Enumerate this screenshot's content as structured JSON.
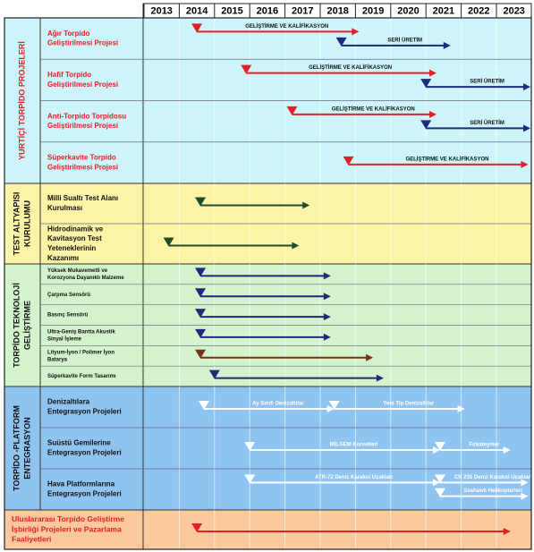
{
  "years": [
    2013,
    2014,
    2015,
    2016,
    2017,
    2018,
    2019,
    2020,
    2021,
    2022,
    2023
  ],
  "groups": [
    {
      "title": [
        "YURTİÇİ TORPİDO PROJELERİ"
      ],
      "fill": "#ccf4f9",
      "label_color": "#e3202a",
      "rows": [
        {
          "label": [
            "Ağır Torpido",
            "Geliştirilmesi Projesi"
          ],
          "bars": [
            {
              "start": 2014.5,
              "end": 2019.1,
              "color": "#e3202a",
              "label": "GELİŞTİRME VE KALİFİKASYON"
            },
            {
              "start": 2018.6,
              "end": 2021.7,
              "color": "#1f2a7a",
              "label": "SERİ ÜRETİM"
            }
          ]
        },
        {
          "label": [
            "Hafif Torpido",
            "Geliştirilmesi  Projesi"
          ],
          "bars": [
            {
              "start": 2015.9,
              "end": 2021.3,
              "color": "#e3202a",
              "label": "GELİŞTİRME VE KALİFİKASYON"
            },
            {
              "start": 2021.0,
              "end": 2024.0,
              "color": "#1f2a7a",
              "label": "SERİ ÜRETİM"
            }
          ]
        },
        {
          "label": [
            "Anti-Torpido Torpidosu",
            "Geliştirilmesi Projesi"
          ],
          "bars": [
            {
              "start": 2017.2,
              "end": 2021.3,
              "color": "#e3202a",
              "label": "GELİŞTİRME VE KALİFİKASYON"
            },
            {
              "start": 2021.0,
              "end": 2024.0,
              "color": "#1f2a7a",
              "label": "SERİ ÜRETİM"
            }
          ]
        },
        {
          "label": [
            "Süperkavite Torpido",
            "Geliştirilmesi Projesi"
          ],
          "bars": [
            {
              "start": 2018.8,
              "end": 2023.9,
              "color": "#e3202a",
              "label": "GELİŞTİRME VE KALİFİKASYON"
            }
          ]
        }
      ]
    },
    {
      "title": [
        "TEST ALTYAPISI",
        "KURULUMU"
      ],
      "fill": "#fbf3a6",
      "label_color": "#111111",
      "rows": [
        {
          "label": [
            "Milli Sualtı Test Alanı",
            "Kurulması"
          ],
          "bars": [
            {
              "start": 2014.6,
              "end": 2017.7,
              "color": "#1d4d2a"
            }
          ]
        },
        {
          "label": [
            "Hidrodinamik ve",
            "Kavitasyon Test",
            "Yeteneklerinin",
            "Kazanımı"
          ],
          "bars": [
            {
              "start": 2013.7,
              "end": 2017.4,
              "color": "#1d4d2a"
            }
          ]
        }
      ]
    },
    {
      "title": [
        "TORPİDO TEKNOLOJİ",
        "GELİŞTİRME"
      ],
      "fill": "#d2f3cc",
      "label_color": "#111111",
      "rows": [
        {
          "label": [
            "Yüksek Mukavemetli ve",
            "Korozyona Dayanıklı Malzeme"
          ],
          "bars": [
            {
              "start": 2014.6,
              "end": 2018.3,
              "color": "#1f2a7a"
            }
          ]
        },
        {
          "label": [
            "Çarpma Sensörü"
          ],
          "bars": [
            {
              "start": 2014.6,
              "end": 2018.3,
              "color": "#1f2a7a"
            }
          ]
        },
        {
          "label": [
            "Basınç Sensörü"
          ],
          "bars": [
            {
              "start": 2014.6,
              "end": 2018.3,
              "color": "#1f2a7a"
            }
          ]
        },
        {
          "label": [
            "Ultra-Geniş Bantta Akustik",
            "Sinyal İşleme"
          ],
          "bars": [
            {
              "start": 2014.6,
              "end": 2018.3,
              "color": "#1f2a7a"
            }
          ]
        },
        {
          "label": [
            "Lityum-İyon / Polimer İyon",
            "Batarya"
          ],
          "bars": [
            {
              "start": 2014.6,
              "end": 2019.5,
              "color": "#7a3318"
            }
          ]
        },
        {
          "label": [
            "Süperkavite Form Tasarımı"
          ],
          "bars": [
            {
              "start": 2015.0,
              "end": 2019.8,
              "color": "#1f2a7a"
            }
          ]
        }
      ]
    },
    {
      "title": [
        "TORPİDO -PLATFORM",
        "ENTEGRASYON"
      ],
      "fill": "#8fc3f0",
      "label_color": "#111111",
      "rows": [
        {
          "label": [
            "Denizaltılara",
            "Entegrasyon Projeleri"
          ],
          "bars": [
            {
              "start": 2014.7,
              "end": 2018.4,
              "color": "#ffffff",
              "label": "Ay Sınıfı Denizaltılar"
            },
            {
              "start": 2018.4,
              "end": 2022.1,
              "color": "#ffffff",
              "label": "Yeni Tip Denizaltılar"
            }
          ]
        },
        {
          "label": [
            "Suüstü Gemilerine",
            "Entegrasyon Projeleri"
          ],
          "bars": [
            {
              "start": 2016.0,
              "end": 2021.4,
              "color": "#ffffff",
              "label": "MİLGEM Korvetleri"
            },
            {
              "start": 2021.4,
              "end": 2023.4,
              "color": "#ffffff",
              "label": "Fırkateynler"
            }
          ]
        },
        {
          "label": [
            "Hava Platformlarına",
            "Entegrasyon Projeleri"
          ],
          "bars": [
            {
              "start": 2016.0,
              "end": 2021.4,
              "color": "#ffffff",
              "label": "ATR-72 Deniz Karakol Uçakları"
            },
            {
              "start": 2021.4,
              "end": 2023.9,
              "color": "#ffffff",
              "label": "CN 235 Deniz Karakol Uçakları"
            },
            {
              "start": 2021.4,
              "end": 2023.9,
              "color": "#ffffff",
              "label": "Seahawk Helikopterleri"
            }
          ]
        }
      ]
    },
    {
      "fill": "#fbc99b",
      "label_color": "#e3202a",
      "rows": [
        {
          "label": [
            "Uluslararası Torpido Geliştirme",
            "İşbirliği Projeleri ve Pazarlama",
            "Faaliyetleri"
          ],
          "bars": [
            {
              "start": 2014.5,
              "end": 2023.4,
              "color": "#e3202a"
            }
          ]
        }
      ]
    }
  ]
}
